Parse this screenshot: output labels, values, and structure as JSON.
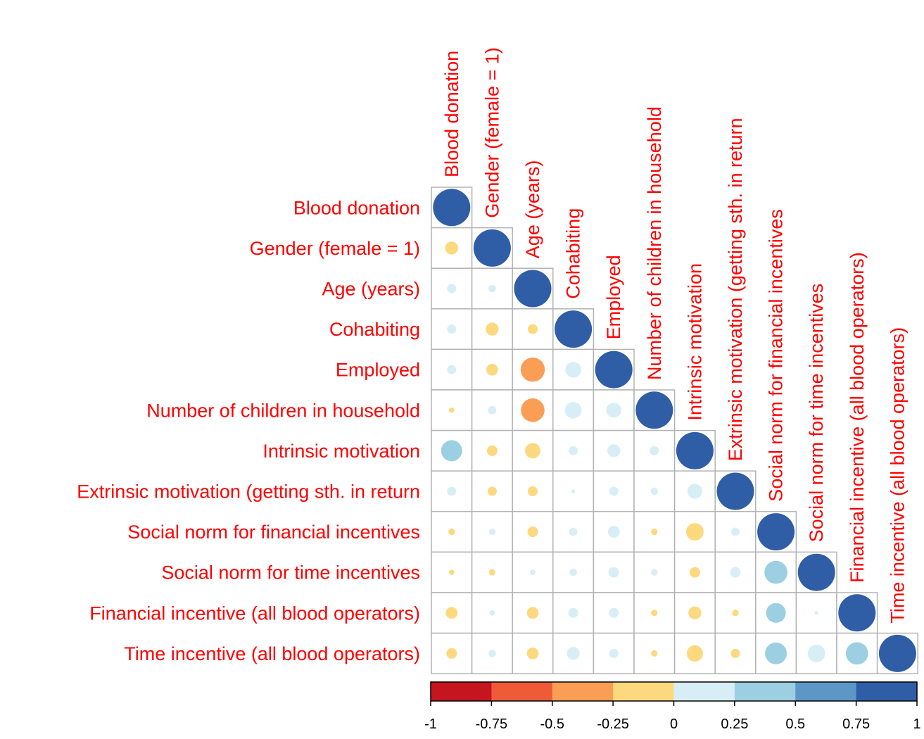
{
  "chart_data": {
    "type": "heatmap",
    "layout": "lower-triangle correlation matrix, circles sized by |r|",
    "variables": [
      "Blood donation",
      "Gender (female = 1)",
      "Age (years)",
      "Cohabiting",
      "Employed",
      "Number of children in household",
      "Intrinsic motivation",
      "Extrinsic motivation (getting sth. in return",
      "Social norm for financial incentives",
      "Social norm for time incentives",
      "Financial incentive (all blood operators)",
      "Time incentive (all blood operators)"
    ],
    "matrix": [
      [
        1.0
      ],
      [
        -0.12,
        1.0
      ],
      [
        0.06,
        0.04,
        1.0
      ],
      [
        0.06,
        -0.12,
        -0.07,
        1.0
      ],
      [
        0.06,
        -0.1,
        -0.42,
        0.18,
        1.0
      ],
      [
        -0.02,
        0.05,
        -0.4,
        0.2,
        0.16,
        1.0
      ],
      [
        0.32,
        -0.08,
        -0.17,
        0.06,
        0.12,
        0.06,
        1.0
      ],
      [
        0.06,
        -0.06,
        -0.07,
        0.01,
        0.06,
        0.04,
        0.16,
        1.0
      ],
      [
        -0.03,
        0.03,
        -0.08,
        0.05,
        0.1,
        -0.03,
        -0.22,
        0.05,
        1.0
      ],
      [
        -0.02,
        -0.03,
        0.02,
        0.04,
        0.08,
        0.03,
        -0.08,
        0.08,
        0.38,
        1.0
      ],
      [
        -0.1,
        0.02,
        -0.1,
        0.07,
        0.07,
        -0.03,
        -0.12,
        -0.03,
        0.28,
        0.01,
        1.0
      ],
      [
        -0.08,
        0.04,
        -0.1,
        0.12,
        0.06,
        -0.03,
        -0.19,
        -0.06,
        0.34,
        0.22,
        0.36,
        1.0
      ]
    ],
    "colorbar": {
      "ticks": [
        "-1",
        "-0.75",
        "-0.5",
        "-0.25",
        "0",
        "0.25",
        "0.5",
        "0.75",
        "1"
      ],
      "colors": [
        "#c5151e",
        "#ef5a37",
        "#f99e54",
        "#fcd97f",
        "#d8eef6",
        "#9ccfe2",
        "#5d97c8",
        "#2f5ea7"
      ],
      "range": [
        -1,
        1
      ]
    },
    "grid": true
  }
}
